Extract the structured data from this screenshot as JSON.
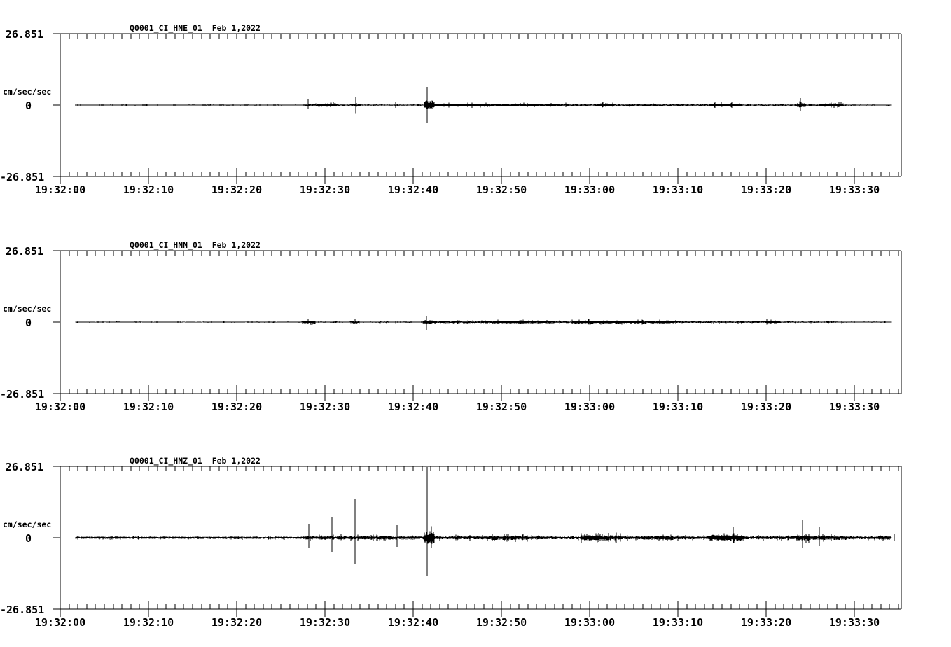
{
  "page": {
    "background_color": "#ffffff",
    "trace_color": "#000000",
    "description": "Three-channel seismogram waveform display"
  },
  "chart_data": [
    {
      "type": "line",
      "title": "Q0001_CI_HNE_01  Feb 1,2022",
      "ylabel": "cm/sec/sec",
      "y_tick_labels": {
        "max": "26.851",
        "zero": "0",
        "min": "-26.851"
      },
      "ylim": [
        -26.851,
        26.851
      ],
      "x_axis_start_time": "19:32:00",
      "x_ticks": [
        "19:32:00",
        "19:32:10",
        "19:32:20",
        "19:32:30",
        "19:32:40",
        "19:32:50",
        "19:33:00",
        "19:33:10",
        "19:33:20",
        "19:33:30"
      ],
      "x_major_step_sec": 10,
      "x_minor_step_sec": 1,
      "x_range_sec": [
        0,
        95.3
      ],
      "trace": {
        "start_sec": 1.75,
        "end_sec": 94.2,
        "noise_envelope_sec_amp": [
          [
            1.7,
            27.5,
            0.16
          ],
          [
            27.5,
            29.2,
            0.3
          ],
          [
            29.2,
            31.3,
            0.55
          ],
          [
            31.3,
            33.0,
            0.2
          ],
          [
            33.0,
            34.2,
            0.35
          ],
          [
            34.2,
            41.2,
            0.2
          ],
          [
            41.2,
            42.4,
            1.5
          ],
          [
            42.4,
            47.0,
            0.45
          ],
          [
            47.0,
            54.0,
            0.4
          ],
          [
            54.0,
            57.0,
            0.35
          ],
          [
            57.0,
            60.8,
            0.28
          ],
          [
            60.8,
            62.8,
            0.5
          ],
          [
            62.8,
            73.5,
            0.28
          ],
          [
            73.5,
            77.2,
            0.5
          ],
          [
            77.2,
            83.5,
            0.22
          ],
          [
            83.5,
            84.6,
            0.7
          ],
          [
            84.6,
            86.0,
            0.28
          ],
          [
            86.0,
            88.8,
            0.5
          ],
          [
            88.8,
            94.2,
            0.18
          ]
        ],
        "spikes_sec_up_down": [
          [
            2.3,
            0.5,
            0.4
          ],
          [
            7.5,
            0.5,
            0.4
          ],
          [
            17.0,
            0.5,
            0.4
          ],
          [
            28.1,
            2.1,
            1.6
          ],
          [
            33.5,
            3.0,
            3.3
          ],
          [
            38.0,
            1.3,
            1.1
          ],
          [
            41.6,
            6.8,
            6.6
          ],
          [
            57.3,
            0.9,
            0.8
          ],
          [
            76.1,
            1.3,
            1.1
          ],
          [
            83.9,
            2.6,
            2.4
          ]
        ]
      }
    },
    {
      "type": "line",
      "title": "Q0001_CI_HNN_01  Feb 1,2022",
      "ylabel": "cm/sec/sec",
      "y_tick_labels": {
        "max": "26.851",
        "zero": "0",
        "min": "-26.851"
      },
      "ylim": [
        -26.851,
        26.851
      ],
      "x_axis_start_time": "19:32:00",
      "x_ticks": [
        "19:32:00",
        "19:32:10",
        "19:32:20",
        "19:32:30",
        "19:32:40",
        "19:32:50",
        "19:33:00",
        "19:33:10",
        "19:33:20",
        "19:33:30"
      ],
      "x_major_step_sec": 10,
      "x_minor_step_sec": 1,
      "x_range_sec": [
        0,
        95.3
      ],
      "trace": {
        "start_sec": 1.75,
        "end_sec": 94.2,
        "noise_envelope_sec_amp": [
          [
            1.7,
            27.4,
            0.14
          ],
          [
            27.4,
            28.9,
            0.45
          ],
          [
            28.9,
            32.9,
            0.18
          ],
          [
            32.9,
            33.9,
            0.35
          ],
          [
            33.9,
            41.1,
            0.18
          ],
          [
            41.1,
            42.2,
            0.7
          ],
          [
            42.2,
            48.0,
            0.32
          ],
          [
            48.0,
            56.0,
            0.4
          ],
          [
            56.0,
            58.0,
            0.28
          ],
          [
            58.0,
            65.5,
            0.45
          ],
          [
            65.5,
            70.0,
            0.4
          ],
          [
            70.0,
            80.0,
            0.26
          ],
          [
            80.0,
            81.6,
            0.45
          ],
          [
            81.6,
            88.0,
            0.2
          ],
          [
            88.0,
            94.2,
            0.15
          ]
        ],
        "spikes_sec_up_down": [
          [
            28.1,
            1.0,
            0.8
          ],
          [
            33.4,
            1.1,
            0.7
          ],
          [
            38.0,
            0.5,
            0.4
          ],
          [
            41.5,
            2.1,
            2.9
          ],
          [
            66.0,
            0.8,
            0.6
          ],
          [
            81.0,
            0.6,
            0.5
          ]
        ]
      }
    },
    {
      "type": "line",
      "title": "Q0001_CI_HNZ_01  Feb 1,2022",
      "ylabel": "cm/sec/sec",
      "y_tick_labels": {
        "max": "26.851",
        "zero": "0",
        "min": "-26.851"
      },
      "ylim": [
        -26.851,
        26.851
      ],
      "x_axis_start_time": "19:32:00",
      "x_ticks": [
        "19:32:00",
        "19:32:10",
        "19:32:20",
        "19:32:30",
        "19:32:40",
        "19:32:50",
        "19:33:00",
        "19:33:10",
        "19:33:20",
        "19:33:30"
      ],
      "x_major_step_sec": 10,
      "x_minor_step_sec": 1,
      "x_range_sec": [
        0,
        95.3
      ],
      "trace": {
        "start_sec": 1.75,
        "end_sec": 94.2,
        "noise_envelope_sec_amp": [
          [
            1.7,
            27.5,
            0.38
          ],
          [
            27.5,
            43.0,
            0.55
          ],
          [
            41.2,
            42.4,
            2.0
          ],
          [
            43.0,
            48.0,
            0.5
          ],
          [
            48.0,
            53.0,
            0.7
          ],
          [
            53.0,
            59.0,
            0.5
          ],
          [
            59.0,
            63.5,
            0.85
          ],
          [
            63.5,
            66.0,
            0.5
          ],
          [
            66.0,
            69.5,
            0.7
          ],
          [
            69.5,
            73.5,
            0.5
          ],
          [
            73.5,
            77.5,
            1.0
          ],
          [
            77.5,
            83.5,
            0.5
          ],
          [
            83.5,
            85.0,
            0.9
          ],
          [
            85.0,
            89.0,
            0.7
          ],
          [
            89.0,
            93.0,
            0.45
          ],
          [
            93.0,
            94.2,
            0.65
          ]
        ],
        "spikes_sec_up_down": [
          [
            28.2,
            5.3,
            3.9
          ],
          [
            30.8,
            7.9,
            5.3
          ],
          [
            33.4,
            14.5,
            10.0
          ],
          [
            38.2,
            4.7,
            3.4
          ],
          [
            41.6,
            26.6,
            14.5
          ],
          [
            50.8,
            1.6,
            1.3
          ],
          [
            61.2,
            1.6,
            1.3
          ],
          [
            76.3,
            4.2,
            2.0
          ],
          [
            84.1,
            6.6,
            3.9
          ],
          [
            86.0,
            3.9,
            3.2
          ],
          [
            94.5,
            1.3,
            1.3
          ]
        ]
      }
    }
  ]
}
